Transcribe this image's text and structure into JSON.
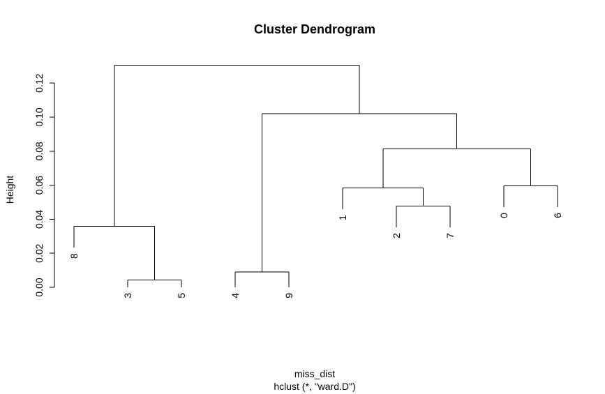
{
  "chart_data": {
    "type": "dendrogram",
    "title": "Cluster Dendrogram",
    "xlabel": "miss_dist",
    "sublabel": "hclust (*, \"ward.D\")",
    "ylabel": "Height",
    "ylim": [
      0,
      0.13
    ],
    "yticks": [
      0.0,
      0.02,
      0.04,
      0.06,
      0.08,
      0.1,
      0.12
    ],
    "ytick_labels": [
      "0.00",
      "0.02",
      "0.04",
      "0.06",
      "0.08",
      "0.10",
      "0.12"
    ],
    "leaf_order": [
      "8",
      "3",
      "5",
      "4",
      "9",
      "1",
      "2",
      "7",
      "0",
      "6"
    ],
    "merges": [
      {
        "left": "3",
        "right": "5",
        "height": 0.0043
      },
      {
        "left": "4",
        "right": "9",
        "height": 0.0091
      },
      {
        "left": "8",
        "right": "(3,5)",
        "height": 0.0358
      },
      {
        "left": "2",
        "right": "7",
        "height": 0.0477
      },
      {
        "left": "1",
        "right": "(2,7)",
        "height": 0.0583
      },
      {
        "left": "0",
        "right": "6",
        "height": 0.0596
      },
      {
        "left": "(1,(2,7))",
        "right": "(0,6)",
        "height": 0.0813
      },
      {
        "left": "(4,9)",
        "right": "((1,(2,7)),(0,6))",
        "height": 0.1021
      },
      {
        "left": "(8,(3,5))",
        "right": "((4,9),((1,(2,7)),(0,6)))",
        "height": 0.1306
      }
    ]
  }
}
